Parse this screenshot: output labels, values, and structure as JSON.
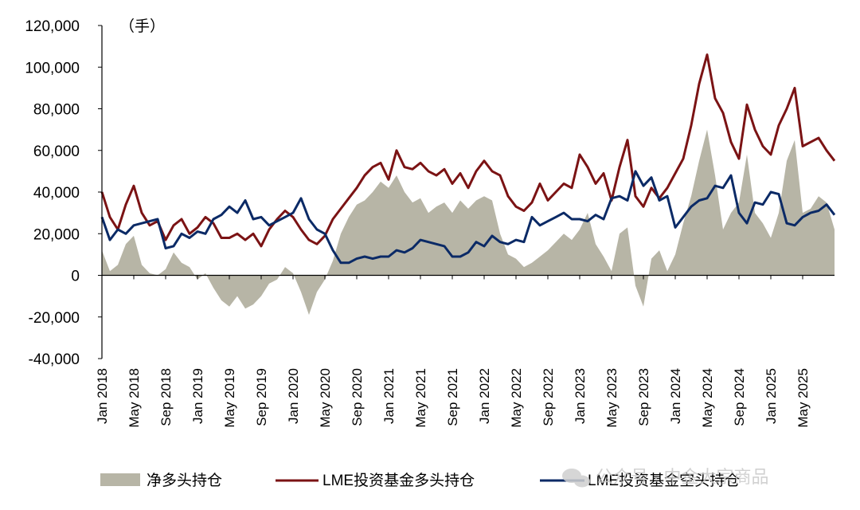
{
  "chart_data": {
    "type": "line",
    "unit_label": "（手）",
    "ylim": [
      -40000,
      120000
    ],
    "y_ticks": [
      "-40,000",
      "-20,000",
      "0",
      "20,000",
      "40,000",
      "60,000",
      "80,000",
      "100,000",
      "120,000"
    ],
    "x_ticks": [
      "Jan 2018",
      "May 2018",
      "Sep 2018",
      "Jan 2019",
      "May 2019",
      "Sep 2019",
      "Jan 2020",
      "May 2020",
      "Sep 2020",
      "Jan 2021",
      "May 2021",
      "Sep 2021",
      "Jan 2022",
      "May 2022",
      "Sep 2022",
      "Jan 2023",
      "May 2023",
      "Sep 2023",
      "Jan 2024",
      "May 2024",
      "Sep 2024",
      "Jan 2025",
      "May 2025"
    ],
    "x_range": [
      "2018-01",
      "2025-09"
    ],
    "legend_position": "bottom",
    "series": [
      {
        "name": "净多头持仓",
        "kind": "area",
        "color": "#b7b5a6",
        "points": [
          [
            "2018-01",
            12000
          ],
          [
            "2018-02",
            2000
          ],
          [
            "2018-03",
            5000
          ],
          [
            "2018-04",
            15000
          ],
          [
            "2018-05",
            19000
          ],
          [
            "2018-06",
            5000
          ],
          [
            "2018-07",
            1000
          ],
          [
            "2018-08",
            0
          ],
          [
            "2018-09",
            3000
          ],
          [
            "2018-10",
            11000
          ],
          [
            "2018-11",
            6000
          ],
          [
            "2018-12",
            4000
          ],
          [
            "2019-01",
            -2000
          ],
          [
            "2019-02",
            1000
          ],
          [
            "2019-03",
            -6000
          ],
          [
            "2019-04",
            -12000
          ],
          [
            "2019-05",
            -15000
          ],
          [
            "2019-06",
            -10000
          ],
          [
            "2019-07",
            -16000
          ],
          [
            "2019-08",
            -14000
          ],
          [
            "2019-09",
            -10000
          ],
          [
            "2019-10",
            -4000
          ],
          [
            "2019-11",
            -2000
          ],
          [
            "2019-12",
            4000
          ],
          [
            "2020-01",
            1000
          ],
          [
            "2020-02",
            -8000
          ],
          [
            "2020-03",
            -19000
          ],
          [
            "2020-04",
            -8000
          ],
          [
            "2020-05",
            -2000
          ],
          [
            "2020-06",
            7000
          ],
          [
            "2020-07",
            20000
          ],
          [
            "2020-08",
            28000
          ],
          [
            "2020-09",
            34000
          ],
          [
            "2020-10",
            36000
          ],
          [
            "2020-11",
            40000
          ],
          [
            "2020-12",
            45000
          ],
          [
            "2021-01",
            42000
          ],
          [
            "2021-02",
            48000
          ],
          [
            "2021-03",
            40000
          ],
          [
            "2021-04",
            35000
          ],
          [
            "2021-05",
            37000
          ],
          [
            "2021-06",
            30000
          ],
          [
            "2021-07",
            33000
          ],
          [
            "2021-08",
            35000
          ],
          [
            "2021-09",
            30000
          ],
          [
            "2021-10",
            36000
          ],
          [
            "2021-11",
            32000
          ],
          [
            "2021-12",
            36000
          ],
          [
            "2022-01",
            38000
          ],
          [
            "2022-02",
            36000
          ],
          [
            "2022-03",
            20000
          ],
          [
            "2022-04",
            10000
          ],
          [
            "2022-05",
            8000
          ],
          [
            "2022-06",
            4000
          ],
          [
            "2022-07",
            6000
          ],
          [
            "2022-08",
            9000
          ],
          [
            "2022-09",
            12000
          ],
          [
            "2022-10",
            16000
          ],
          [
            "2022-11",
            20000
          ],
          [
            "2022-12",
            17000
          ],
          [
            "2023-01",
            22000
          ],
          [
            "2023-02",
            30000
          ],
          [
            "2023-03",
            15000
          ],
          [
            "2023-04",
            9000
          ],
          [
            "2023-05",
            2000
          ],
          [
            "2023-06",
            20000
          ],
          [
            "2023-07",
            23000
          ],
          [
            "2023-08",
            -5000
          ],
          [
            "2023-09",
            -15000
          ],
          [
            "2023-10",
            8000
          ],
          [
            "2023-11",
            12000
          ],
          [
            "2023-12",
            2000
          ],
          [
            "2024-01",
            10000
          ],
          [
            "2024-02",
            25000
          ],
          [
            "2024-03",
            38000
          ],
          [
            "2024-04",
            55000
          ],
          [
            "2024-05",
            70000
          ],
          [
            "2024-06",
            48000
          ],
          [
            "2024-07",
            22000
          ],
          [
            "2024-08",
            30000
          ],
          [
            "2024-09",
            35000
          ],
          [
            "2024-10",
            58000
          ],
          [
            "2024-11",
            30000
          ],
          [
            "2024-12",
            25000
          ],
          [
            "2025-01",
            18000
          ],
          [
            "2025-02",
            30000
          ],
          [
            "2025-03",
            55000
          ],
          [
            "2025-04",
            65000
          ],
          [
            "2025-05",
            30000
          ],
          [
            "2025-06",
            32000
          ],
          [
            "2025-07",
            38000
          ],
          [
            "2025-08",
            35000
          ],
          [
            "2025-09",
            22000
          ]
        ]
      },
      {
        "name": "LME投资基金多头持仓",
        "kind": "line",
        "color": "#7b1314",
        "points": [
          [
            "2018-01",
            40000
          ],
          [
            "2018-02",
            28000
          ],
          [
            "2018-03",
            22000
          ],
          [
            "2018-04",
            34000
          ],
          [
            "2018-05",
            43000
          ],
          [
            "2018-06",
            30000
          ],
          [
            "2018-07",
            24000
          ],
          [
            "2018-08",
            26000
          ],
          [
            "2018-09",
            17000
          ],
          [
            "2018-10",
            24000
          ],
          [
            "2018-11",
            27000
          ],
          [
            "2018-12",
            20000
          ],
          [
            "2019-01",
            23000
          ],
          [
            "2019-02",
            28000
          ],
          [
            "2019-03",
            25000
          ],
          [
            "2019-04",
            18000
          ],
          [
            "2019-05",
            18000
          ],
          [
            "2019-06",
            20000
          ],
          [
            "2019-07",
            17000
          ],
          [
            "2019-08",
            20000
          ],
          [
            "2019-09",
            14000
          ],
          [
            "2019-10",
            22000
          ],
          [
            "2019-11",
            27000
          ],
          [
            "2019-12",
            31000
          ],
          [
            "2020-01",
            28000
          ],
          [
            "2020-02",
            22000
          ],
          [
            "2020-03",
            17000
          ],
          [
            "2020-04",
            15000
          ],
          [
            "2020-05",
            19000
          ],
          [
            "2020-06",
            27000
          ],
          [
            "2020-07",
            32000
          ],
          [
            "2020-08",
            37000
          ],
          [
            "2020-09",
            42000
          ],
          [
            "2020-10",
            48000
          ],
          [
            "2020-11",
            52000
          ],
          [
            "2020-12",
            54000
          ],
          [
            "2021-01",
            46000
          ],
          [
            "2021-02",
            60000
          ],
          [
            "2021-03",
            52000
          ],
          [
            "2021-04",
            51000
          ],
          [
            "2021-05",
            54000
          ],
          [
            "2021-06",
            50000
          ],
          [
            "2021-07",
            48000
          ],
          [
            "2021-08",
            51000
          ],
          [
            "2021-09",
            44000
          ],
          [
            "2021-10",
            49000
          ],
          [
            "2021-11",
            42000
          ],
          [
            "2021-12",
            50000
          ],
          [
            "2022-01",
            55000
          ],
          [
            "2022-02",
            50000
          ],
          [
            "2022-03",
            48000
          ],
          [
            "2022-04",
            38000
          ],
          [
            "2022-05",
            33000
          ],
          [
            "2022-06",
            31000
          ],
          [
            "2022-07",
            35000
          ],
          [
            "2022-08",
            44000
          ],
          [
            "2022-09",
            36000
          ],
          [
            "2022-10",
            40000
          ],
          [
            "2022-11",
            44000
          ],
          [
            "2022-12",
            42000
          ],
          [
            "2023-01",
            58000
          ],
          [
            "2023-02",
            52000
          ],
          [
            "2023-03",
            44000
          ],
          [
            "2023-04",
            49000
          ],
          [
            "2023-05",
            36000
          ],
          [
            "2023-06",
            52000
          ],
          [
            "2023-07",
            65000
          ],
          [
            "2023-08",
            38000
          ],
          [
            "2023-09",
            33000
          ],
          [
            "2023-10",
            42000
          ],
          [
            "2023-11",
            37000
          ],
          [
            "2023-12",
            42000
          ],
          [
            "2024-01",
            49000
          ],
          [
            "2024-02",
            56000
          ],
          [
            "2024-03",
            72000
          ],
          [
            "2024-04",
            92000
          ],
          [
            "2024-05",
            106000
          ],
          [
            "2024-06",
            85000
          ],
          [
            "2024-07",
            78000
          ],
          [
            "2024-08",
            64000
          ],
          [
            "2024-09",
            56000
          ],
          [
            "2024-10",
            82000
          ],
          [
            "2024-11",
            70000
          ],
          [
            "2024-12",
            62000
          ],
          [
            "2025-01",
            58000
          ],
          [
            "2025-02",
            72000
          ],
          [
            "2025-03",
            80000
          ],
          [
            "2025-04",
            90000
          ],
          [
            "2025-05",
            62000
          ],
          [
            "2025-06",
            64000
          ],
          [
            "2025-07",
            66000
          ],
          [
            "2025-08",
            60000
          ],
          [
            "2025-09",
            55000
          ]
        ]
      },
      {
        "name": "LME投资基金空头持仓",
        "kind": "line",
        "color": "#0b2a66",
        "points": [
          [
            "2018-01",
            28000
          ],
          [
            "2018-02",
            17000
          ],
          [
            "2018-03",
            22000
          ],
          [
            "2018-04",
            20000
          ],
          [
            "2018-05",
            24000
          ],
          [
            "2018-06",
            25000
          ],
          [
            "2018-07",
            26000
          ],
          [
            "2018-08",
            27000
          ],
          [
            "2018-09",
            13000
          ],
          [
            "2018-10",
            14000
          ],
          [
            "2018-11",
            20000
          ],
          [
            "2018-12",
            18000
          ],
          [
            "2019-01",
            21000
          ],
          [
            "2019-02",
            20000
          ],
          [
            "2019-03",
            27000
          ],
          [
            "2019-04",
            29000
          ],
          [
            "2019-05",
            33000
          ],
          [
            "2019-06",
            30000
          ],
          [
            "2019-07",
            36000
          ],
          [
            "2019-08",
            27000
          ],
          [
            "2019-09",
            28000
          ],
          [
            "2019-10",
            24000
          ],
          [
            "2019-11",
            26000
          ],
          [
            "2019-12",
            28000
          ],
          [
            "2020-01",
            30000
          ],
          [
            "2020-02",
            37000
          ],
          [
            "2020-03",
            27000
          ],
          [
            "2020-04",
            22000
          ],
          [
            "2020-05",
            20000
          ],
          [
            "2020-06",
            12000
          ],
          [
            "2020-07",
            6000
          ],
          [
            "2020-08",
            6000
          ],
          [
            "2020-09",
            8000
          ],
          [
            "2020-10",
            9000
          ],
          [
            "2020-11",
            8000
          ],
          [
            "2020-12",
            9000
          ],
          [
            "2021-01",
            9000
          ],
          [
            "2021-02",
            12000
          ],
          [
            "2021-03",
            11000
          ],
          [
            "2021-04",
            13000
          ],
          [
            "2021-05",
            17000
          ],
          [
            "2021-06",
            16000
          ],
          [
            "2021-07",
            15000
          ],
          [
            "2021-08",
            14000
          ],
          [
            "2021-09",
            9000
          ],
          [
            "2021-10",
            9000
          ],
          [
            "2021-11",
            11000
          ],
          [
            "2021-12",
            16000
          ],
          [
            "2022-01",
            14000
          ],
          [
            "2022-02",
            19000
          ],
          [
            "2022-03",
            16000
          ],
          [
            "2022-04",
            15000
          ],
          [
            "2022-05",
            17000
          ],
          [
            "2022-06",
            16000
          ],
          [
            "2022-07",
            28000
          ],
          [
            "2022-08",
            24000
          ],
          [
            "2022-09",
            26000
          ],
          [
            "2022-10",
            28000
          ],
          [
            "2022-11",
            30000
          ],
          [
            "2022-12",
            27000
          ],
          [
            "2023-01",
            27000
          ],
          [
            "2023-02",
            26000
          ],
          [
            "2023-03",
            29000
          ],
          [
            "2023-04",
            27000
          ],
          [
            "2023-05",
            37000
          ],
          [
            "2023-06",
            38000
          ],
          [
            "2023-07",
            36000
          ],
          [
            "2023-08",
            50000
          ],
          [
            "2023-09",
            43000
          ],
          [
            "2023-10",
            47000
          ],
          [
            "2023-11",
            36000
          ],
          [
            "2023-12",
            38000
          ],
          [
            "2024-01",
            23000
          ],
          [
            "2024-02",
            28000
          ],
          [
            "2024-03",
            33000
          ],
          [
            "2024-04",
            36000
          ],
          [
            "2024-05",
            37000
          ],
          [
            "2024-06",
            43000
          ],
          [
            "2024-07",
            42000
          ],
          [
            "2024-08",
            48000
          ],
          [
            "2024-09",
            30000
          ],
          [
            "2024-10",
            25000
          ],
          [
            "2024-11",
            35000
          ],
          [
            "2024-12",
            34000
          ],
          [
            "2025-01",
            40000
          ],
          [
            "2025-02",
            39000
          ],
          [
            "2025-03",
            25000
          ],
          [
            "2025-04",
            24000
          ],
          [
            "2025-05",
            28000
          ],
          [
            "2025-06",
            30000
          ],
          [
            "2025-07",
            31000
          ],
          [
            "2025-08",
            34000
          ],
          [
            "2025-09",
            29000
          ]
        ]
      }
    ]
  },
  "watermark": {
    "text": "公众号 · 中金大宗商品",
    "icon": "wechat-icon"
  }
}
